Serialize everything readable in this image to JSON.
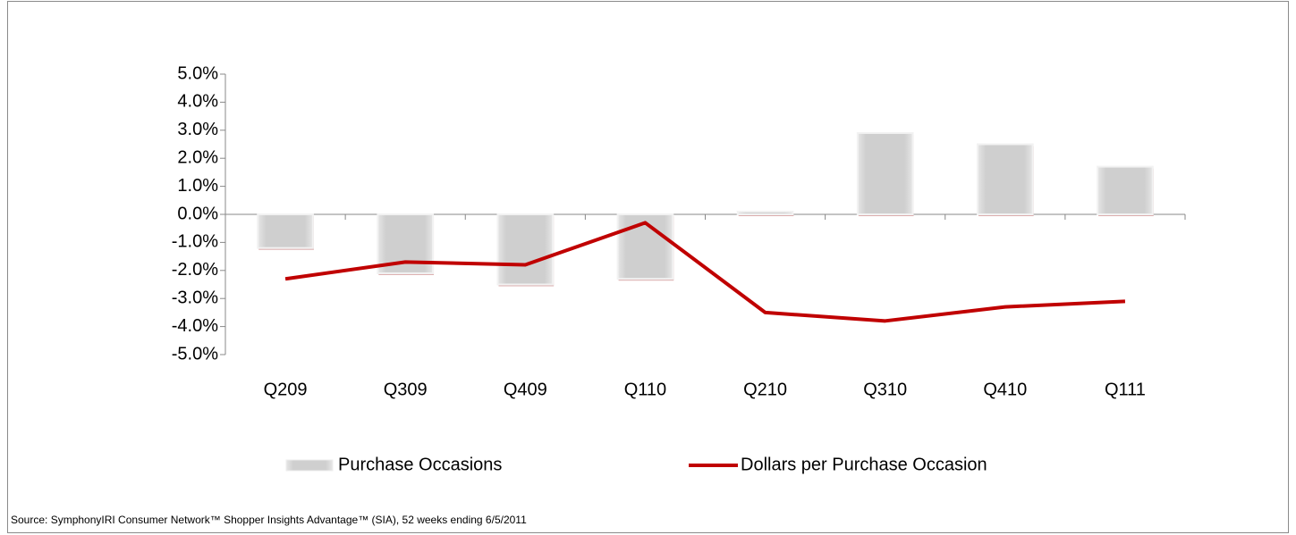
{
  "chart_data": {
    "type": "bar+line",
    "categories": [
      "Q209",
      "Q309",
      "Q409",
      "Q110",
      "Q210",
      "Q310",
      "Q410",
      "Q111"
    ],
    "series": [
      {
        "name": "Purchase Occasions",
        "type": "bar",
        "color": "#cfcfcf",
        "values": [
          -1.2,
          -2.1,
          -2.5,
          -2.3,
          0.1,
          2.9,
          2.5,
          1.7
        ]
      },
      {
        "name": "Dollars per Purchase Occasion",
        "type": "line",
        "color": "#c00000",
        "values": [
          -2.3,
          -1.7,
          -1.8,
          -0.3,
          -3.5,
          -3.8,
          -3.3,
          -3.1
        ]
      }
    ],
    "ylim": [
      -5,
      5
    ],
    "yticks": [
      {
        "value": 5,
        "label": "5.0%"
      },
      {
        "value": 4,
        "label": "4.0%"
      },
      {
        "value": 3,
        "label": "3.0%"
      },
      {
        "value": 2,
        "label": "2.0%"
      },
      {
        "value": 1,
        "label": "1.0%"
      },
      {
        "value": 0,
        "label": "0.0%"
      },
      {
        "value": -1,
        "label": "-1.0%"
      },
      {
        "value": -2,
        "label": "-2.0%"
      },
      {
        "value": -3,
        "label": "-3.0%"
      },
      {
        "value": -4,
        "label": "-4.0%"
      },
      {
        "value": -5,
        "label": "-5.0%"
      }
    ],
    "legend": "bottom",
    "source": "Source:  SymphonyIRI Consumer Network™ Shopper Insights Advantage™ (SIA), 52 weeks ending 6/5/2011"
  }
}
